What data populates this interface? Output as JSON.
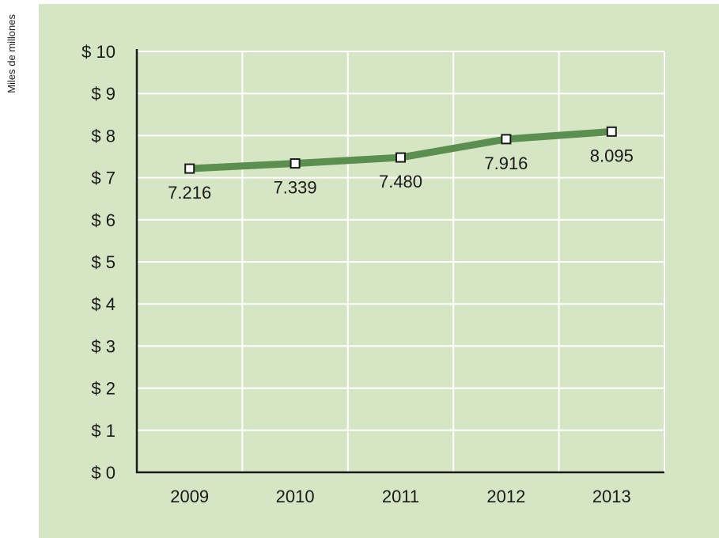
{
  "colors": {
    "panel_background": "#d6e6c4",
    "grid": "#ffffff",
    "axis": "#1a1a1a",
    "series_line": "#5b8f4f",
    "marker_fill": "#ffffff",
    "marker_stroke": "#1a1a1a"
  },
  "chart_data": {
    "type": "line",
    "title": "",
    "xlabel": "",
    "ylabel": "Miles de millones",
    "categories": [
      "2009",
      "2010",
      "2011",
      "2012",
      "2013"
    ],
    "y_tick_labels": [
      "$ 0",
      "$ 1",
      "$ 2",
      "$ 3",
      "$ 4",
      "$ 5",
      "$ 6",
      "$ 7",
      "$ 8",
      "$ 9",
      "$ 10"
    ],
    "ylim": [
      0,
      10
    ],
    "grid": true,
    "legend": "none",
    "series": [
      {
        "values": [
          7.216,
          7.339,
          7.48,
          7.916,
          8.095
        ],
        "data_labels": [
          "7.216",
          "7.339",
          "7.480",
          "7.916",
          "8.095"
        ],
        "label_position": [
          "below",
          "below",
          "below",
          "below",
          "below"
        ]
      }
    ]
  }
}
